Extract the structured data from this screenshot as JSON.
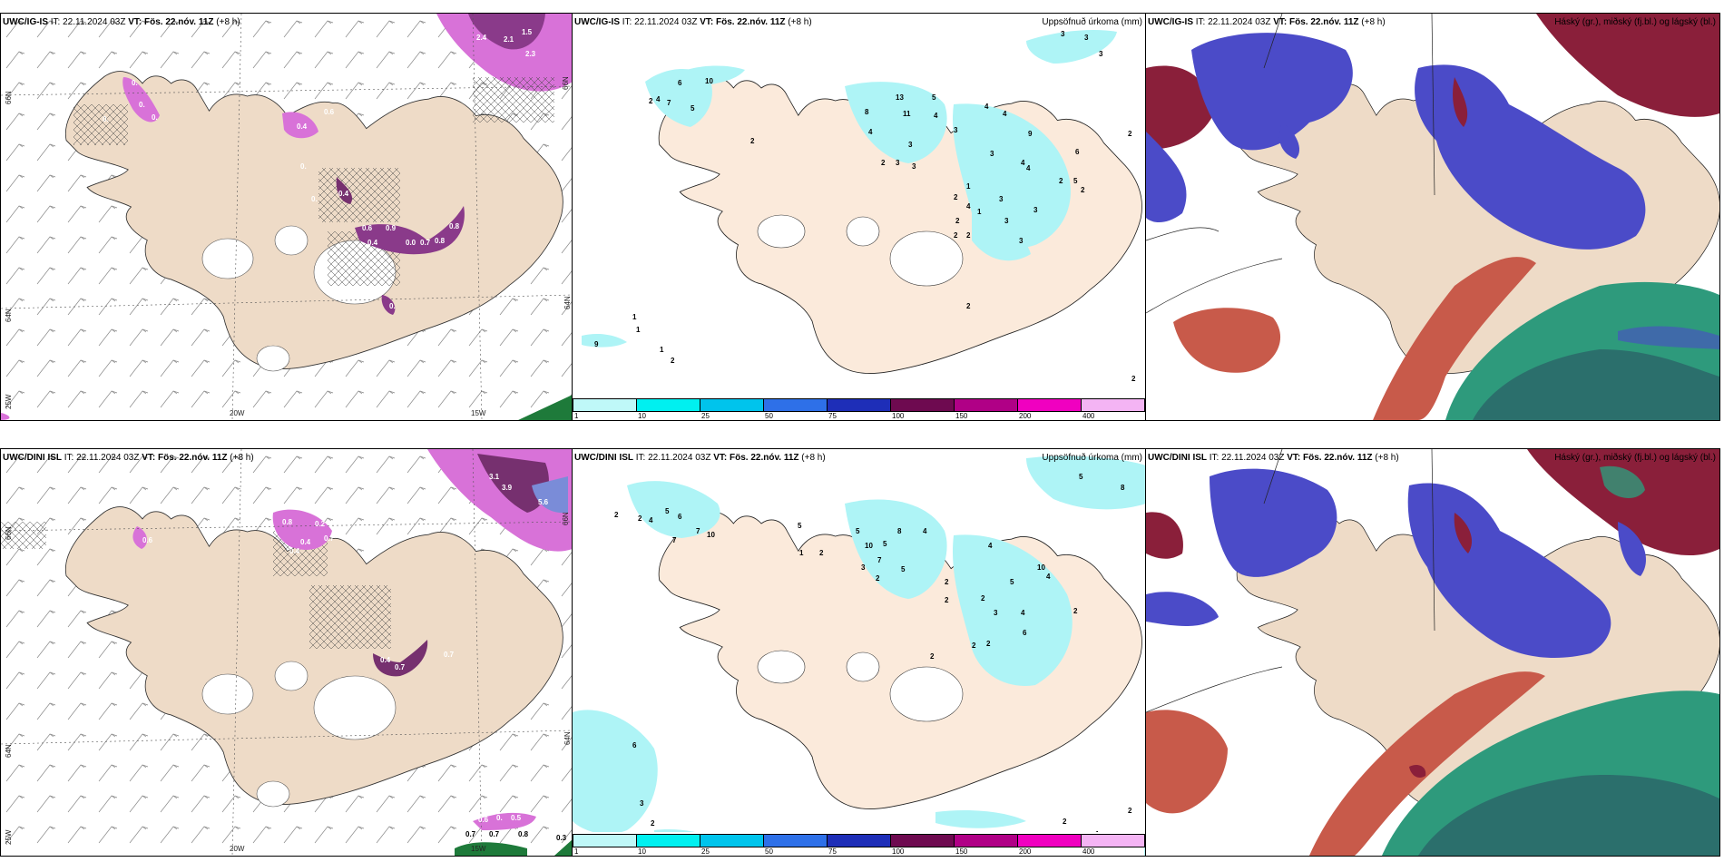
{
  "colors": {
    "land": "#eedbc7",
    "land_mid": "#fbeadb",
    "sea": "#ffffff",
    "precip": "#aef4f6",
    "snow_light": "#d872d8",
    "snow_dark": "#76306f",
    "cloud_high": "#8a1f3a",
    "cloud_mid": "#4b4bc8",
    "cloud_low": "#2e9a7c"
  },
  "top_row": {
    "wind": {
      "model": "UWC/IG-IS",
      "it": "IT: 22.11.2024 03Z",
      "vt": "VT: Fös. 22.nóv. 11Z",
      "lead": "(+8 h)",
      "axis_lat": [
        "66N",
        "64N",
        "25W"
      ],
      "axis_lat_right": [
        "66N",
        "64N"
      ],
      "axis_lon": [
        "20W",
        "15W"
      ],
      "values": [
        "2.4",
        "2.1",
        "1.5",
        "2.3",
        "0.",
        "0.",
        "0.",
        "0.",
        "0.4",
        "0.6",
        "0.",
        "0.",
        "0.4",
        "0.6",
        "0.9",
        "0.4",
        "0.0",
        "0.7",
        "0.8",
        "0.8",
        "0."
      ]
    },
    "precip": {
      "model": "UWC/IG-IS",
      "it": "IT: 22.11.2024 03Z",
      "vt": "VT: Fös. 22.nóv. 11Z",
      "lead": "(+8 h)",
      "field": "Uppsöfnuð úrkoma (mm)",
      "colorbar": [
        {
          "label": "1",
          "color": "#bff8f8"
        },
        {
          "label": "10",
          "color": "#00f0f0"
        },
        {
          "label": "25",
          "color": "#00c4ec"
        },
        {
          "label": "50",
          "color": "#2e70e8"
        },
        {
          "label": "75",
          "color": "#1e2eb8"
        },
        {
          "label": "100",
          "color": "#6e0a50"
        },
        {
          "label": "150",
          "color": "#b00086"
        },
        {
          "label": "200",
          "color": "#f000c0"
        },
        {
          "label": "400",
          "color": "#f4b4f4"
        }
      ],
      "values": [
        "3",
        "3",
        "3",
        "2",
        "4",
        "7",
        "6",
        "5",
        "8",
        "13",
        "11",
        "5",
        "4",
        "3",
        "4",
        "4",
        "9",
        "4",
        "3",
        "2",
        "3",
        "3",
        "3",
        "4",
        "6",
        "5",
        "2",
        "2",
        "1",
        "3",
        "4",
        "3",
        "2",
        "4",
        "3",
        "3",
        "2",
        "1",
        "2",
        "2",
        "2",
        "2",
        "1",
        "9",
        "1",
        "1",
        "2",
        "2",
        "2",
        "10"
      ]
    },
    "clouds": {
      "model": "UWC/IG-IS",
      "it": "IT: 22.11.2024 03Z",
      "vt": "VT: Fös. 22.nóv. 11Z",
      "lead": "(+8 h)",
      "field": "Háský (gr.), miðský (fj.bl.) og lágský (bl.)"
    }
  },
  "bottom_row": {
    "wind": {
      "model": "UWC/DINI ISL",
      "it": "IT: 22.11.2024 03Z",
      "vt": "VT: Fös. 22.nóv. 11Z",
      "lead": "(+8 h)",
      "axis_lat": [
        "66N",
        "64N",
        "25W"
      ],
      "axis_lat_right": [
        "66N",
        "64N"
      ],
      "axis_lon": [
        "20W",
        "15W"
      ],
      "values": [
        "3.1",
        "3.9",
        "5.6",
        "0.6",
        "0.8",
        "0.4",
        "0.2",
        "0.7",
        "0.4",
        "0.4",
        "0.7",
        "0.7",
        "0.6",
        "0.",
        "0.5",
        "0.7",
        "0.7",
        "0.8",
        "0.3"
      ]
    },
    "precip": {
      "model": "UWC/DINI ISL",
      "it": "IT: 22.11.2024 03Z",
      "vt": "VT: Fös. 22.nóv. 11Z",
      "lead": "(+8 h)",
      "field": "Uppsöfnuð úrkoma (mm)",
      "colorbar": [
        {
          "label": "1",
          "color": "#bff8f8"
        },
        {
          "label": "10",
          "color": "#00f0f0"
        },
        {
          "label": "25",
          "color": "#00c4ec"
        },
        {
          "label": "50",
          "color": "#2e70e8"
        },
        {
          "label": "75",
          "color": "#1e2eb8"
        },
        {
          "label": "100",
          "color": "#6e0a50"
        },
        {
          "label": "150",
          "color": "#b00086"
        },
        {
          "label": "200",
          "color": "#f000c0"
        },
        {
          "label": "400",
          "color": "#f4b4f4"
        }
      ],
      "values": [
        "5",
        "8",
        "2",
        "2",
        "4",
        "5",
        "6",
        "7",
        "10",
        "7",
        "5",
        "1",
        "2",
        "5",
        "10",
        "8",
        "4",
        "5",
        "7",
        "3",
        "2",
        "5",
        "4",
        "10",
        "5",
        "4",
        "2",
        "2",
        "2",
        "3",
        "4",
        "2",
        "6",
        "2",
        "2",
        "2",
        "6",
        "3",
        "2",
        "4",
        "2",
        "1",
        "2"
      ]
    },
    "clouds": {
      "model": "UWC/DINI ISL",
      "it": "IT: 22.11.2024 03Z",
      "vt": "VT: Fös. 22.nóv. 11Z",
      "lead": "(+8 h)",
      "field": "Háský (gr.), miðský (fj.bl.) og lágský (bl.)"
    }
  }
}
